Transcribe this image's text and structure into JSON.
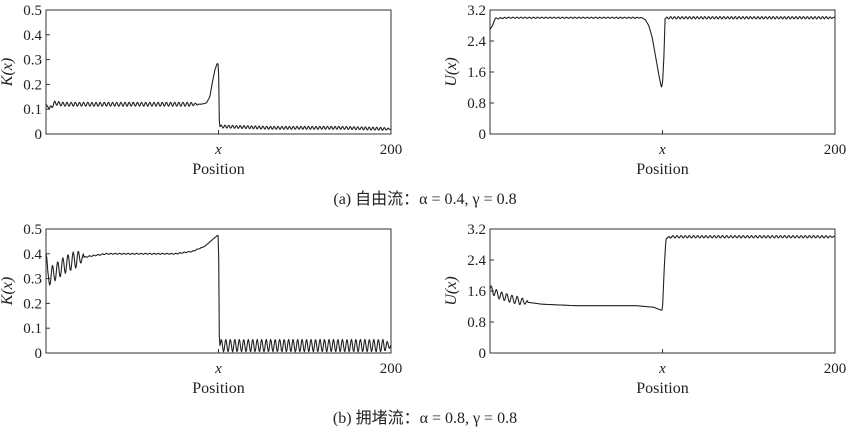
{
  "captions": {
    "top": "(a) 自由流：α = 0.4, γ = 0.8",
    "bottom": "(b) 拥堵流：α = 0.8, γ = 0.8"
  },
  "chart_data": [
    {
      "type": "line",
      "panel": "a-left",
      "ylabel": "K(x)",
      "xlabel": "Position",
      "x_mark": "x",
      "ylim": [
        0,
        0.5
      ],
      "yticks": [
        "0",
        "0.1",
        "0.2",
        "0.3",
        "0.4",
        "0.5"
      ],
      "xlim": [
        0,
        200
      ],
      "xtick_labels": [
        {
          "x": 100,
          "label": "x"
        },
        {
          "x": 200,
          "label": "200"
        }
      ],
      "series": [
        {
          "points": [
            [
              0,
              0.12
            ],
            [
              2,
              0.1
            ],
            [
              5,
              0.125
            ],
            [
              10,
              0.12
            ],
            [
              30,
              0.12
            ],
            [
              60,
              0.12
            ],
            [
              90,
              0.12
            ],
            [
              93,
              0.125
            ],
            [
              95,
              0.15
            ],
            [
              96.5,
              0.21
            ],
            [
              98,
              0.26
            ],
            [
              99.2,
              0.285
            ],
            [
              100,
              0.28
            ],
            [
              100.5,
              0.03
            ],
            [
              103,
              0.03
            ],
            [
              130,
              0.025
            ],
            [
              170,
              0.025
            ],
            [
              200,
              0.02
            ]
          ],
          "osc": [
            [
              2,
              88,
              0.008,
              2.4
            ],
            [
              101,
              200,
              0.006,
              2.2
            ]
          ]
        }
      ]
    },
    {
      "type": "line",
      "panel": "a-right",
      "ylabel": "U(x)",
      "xlabel": "Position",
      "x_mark": "x",
      "ylim": [
        0,
        3.2
      ],
      "yticks": [
        "0",
        "0.8",
        "1.6",
        "2.4",
        "3.2"
      ],
      "xlim": [
        0,
        200
      ],
      "xtick_labels": [
        {
          "x": 100,
          "label": "x"
        },
        {
          "x": 200,
          "label": "200"
        }
      ],
      "series": [
        {
          "points": [
            [
              0,
              2.7
            ],
            [
              1.5,
              2.8
            ],
            [
              3,
              2.98
            ],
            [
              10,
              3.0
            ],
            [
              80,
              3.0
            ],
            [
              88,
              3.0
            ],
            [
              90,
              2.95
            ],
            [
              92,
              2.8
            ],
            [
              94,
              2.5
            ],
            [
              96,
              2.0
            ],
            [
              98,
              1.5
            ],
            [
              99.3,
              1.2
            ],
            [
              100,
              1.3
            ],
            [
              100.8,
              2.0
            ],
            [
              101.5,
              2.98
            ],
            [
              104,
              3.0
            ],
            [
              200,
              3.0
            ]
          ],
          "osc": [
            [
              3,
              88,
              0.015,
              2.4
            ],
            [
              102,
              200,
              0.03,
              2.2
            ]
          ]
        }
      ]
    },
    {
      "type": "line",
      "panel": "b-left",
      "ylabel": "K(x)",
      "xlabel": "Position",
      "x_mark": "x",
      "ylim": [
        0,
        0.5
      ],
      "yticks": [
        "0",
        "0.1",
        "0.2",
        "0.3",
        "0.4",
        "0.5"
      ],
      "xlim": [
        0,
        200
      ],
      "xtick_labels": [
        {
          "x": 100,
          "label": "x"
        },
        {
          "x": 200,
          "label": "200"
        }
      ],
      "series": [
        {
          "points": [
            [
              0,
              0.4
            ],
            [
              1,
              0.3
            ],
            [
              4,
              0.32
            ],
            [
              8,
              0.34
            ],
            [
              12,
              0.36
            ],
            [
              18,
              0.38
            ],
            [
              25,
              0.39
            ],
            [
              35,
              0.4
            ],
            [
              60,
              0.4
            ],
            [
              75,
              0.4
            ],
            [
              85,
              0.41
            ],
            [
              92,
              0.43
            ],
            [
              97,
              0.46
            ],
            [
              99.5,
              0.475
            ],
            [
              100,
              0.47
            ],
            [
              100.5,
              0.03
            ],
            [
              200,
              0.03
            ]
          ],
          "osc": [
            [
              0,
              22,
              0.035,
              3.0
            ],
            [
              22,
              90,
              0.002,
              2.5
            ],
            [
              101,
              200,
              0.025,
              2.6
            ]
          ]
        }
      ]
    },
    {
      "type": "line",
      "panel": "b-right",
      "ylabel": "U(x)",
      "xlabel": "Position",
      "x_mark": "x",
      "ylim": [
        0,
        3.2
      ],
      "yticks": [
        "0",
        "0.8",
        "1.6",
        "2.4",
        "3.2"
      ],
      "xlim": [
        0,
        200
      ],
      "xtick_labels": [
        {
          "x": 100,
          "label": "x"
        },
        {
          "x": 200,
          "label": "200"
        }
      ],
      "series": [
        {
          "points": [
            [
              0,
              1.65
            ],
            [
              5,
              1.5
            ],
            [
              12,
              1.4
            ],
            [
              20,
              1.32
            ],
            [
              30,
              1.26
            ],
            [
              50,
              1.22
            ],
            [
              85,
              1.22
            ],
            [
              95,
              1.18
            ],
            [
              99.5,
              1.1
            ],
            [
              100,
              1.15
            ],
            [
              101,
              2.2
            ],
            [
              102,
              2.95
            ],
            [
              105,
              3.0
            ],
            [
              200,
              3.0
            ]
          ],
          "osc": [
            [
              0,
              22,
              0.1,
              3.0
            ],
            [
              103,
              200,
              0.03,
              2.4
            ]
          ]
        }
      ]
    }
  ]
}
